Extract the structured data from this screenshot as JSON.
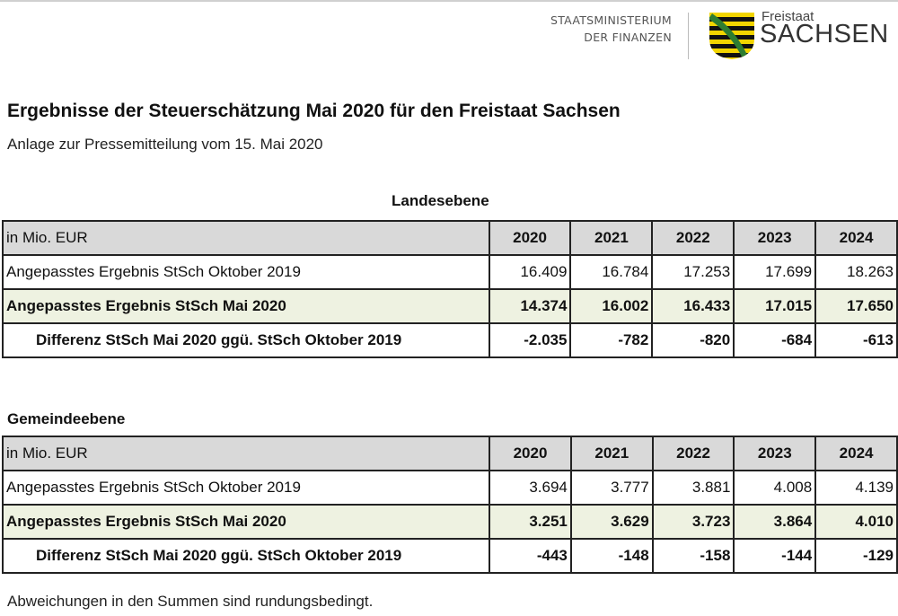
{
  "header": {
    "ministry_line1": "STAATSMINISTERIUM",
    "ministry_line2": "DER FINANZEN",
    "logo_small": "Freistaat",
    "logo_big": "SACHSEN"
  },
  "title": "Ergebnisse der Steuerschätzung Mai 2020 für den Freistaat Sachsen",
  "subtitle": "Anlage zur Pressemitteilung vom 15. Mai 2020",
  "tables": [
    {
      "heading": "Landesebene",
      "unit": "in Mio. EUR",
      "years": [
        "2020",
        "2021",
        "2022",
        "2023",
        "2024"
      ],
      "rows": [
        {
          "label": "Angepasstes Ergebnis StSch Oktober 2019",
          "values": [
            "16.409",
            "16.784",
            "17.253",
            "17.699",
            "18.263"
          ]
        },
        {
          "label": "Angepasstes Ergebnis StSch Mai 2020",
          "values": [
            "14.374",
            "16.002",
            "16.433",
            "17.015",
            "17.650"
          ]
        },
        {
          "label": "Differenz StSch Mai 2020 ggü. StSch Oktober 2019",
          "values": [
            "-2.035",
            "-782",
            "-820",
            "-684",
            "-613"
          ]
        }
      ]
    },
    {
      "heading": "Gemeindeebene",
      "unit": "in Mio. EUR",
      "years": [
        "2020",
        "2021",
        "2022",
        "2023",
        "2024"
      ],
      "rows": [
        {
          "label": "Angepasstes Ergebnis StSch Oktober 2019",
          "values": [
            "3.694",
            "3.777",
            "3.881",
            "4.008",
            "4.139"
          ]
        },
        {
          "label": "Angepasstes Ergebnis StSch Mai 2020",
          "values": [
            "3.251",
            "3.629",
            "3.723",
            "3.864",
            "4.010"
          ]
        },
        {
          "label": "Differenz StSch Mai 2020 ggü. StSch Oktober 2019",
          "values": [
            "-443",
            "-148",
            "-158",
            "-144",
            "-129"
          ]
        }
      ]
    }
  ],
  "footnote": "Abweichungen in den Summen sind rundungsbedingt.",
  "colors": {
    "header_gray": "#d9d9d9",
    "highlight_green": "#eef2e1",
    "crest_yellow": "#f2d500",
    "crest_green": "#2e7d32"
  }
}
